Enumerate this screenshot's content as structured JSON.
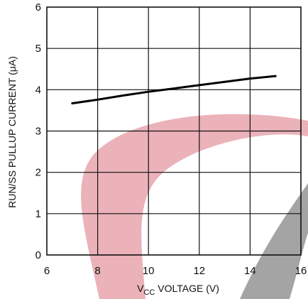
{
  "chart_data": {
    "type": "line",
    "title": "",
    "xlabel": {
      "main": "V",
      "sub": "CC",
      "rest": " VOLTAGE (V)"
    },
    "ylabel": "RUN/SS PULLUP CURRENT (μA)",
    "xlim": [
      6,
      16
    ],
    "ylim": [
      0,
      6
    ],
    "xticks": [
      6,
      8,
      10,
      12,
      14,
      16
    ],
    "yticks": [
      0,
      1,
      2,
      3,
      4,
      5,
      6
    ],
    "grid": true,
    "series": [
      {
        "x": [
          7,
          8,
          9,
          10,
          11,
          12,
          13,
          14,
          15
        ],
        "y": [
          3.67,
          3.76,
          3.86,
          3.95,
          4.03,
          4.11,
          4.19,
          4.27,
          4.33
        ]
      }
    ]
  },
  "watermark": {
    "colors": {
      "pink": "#e8a4ad",
      "gray": "#9a9a9a"
    }
  }
}
